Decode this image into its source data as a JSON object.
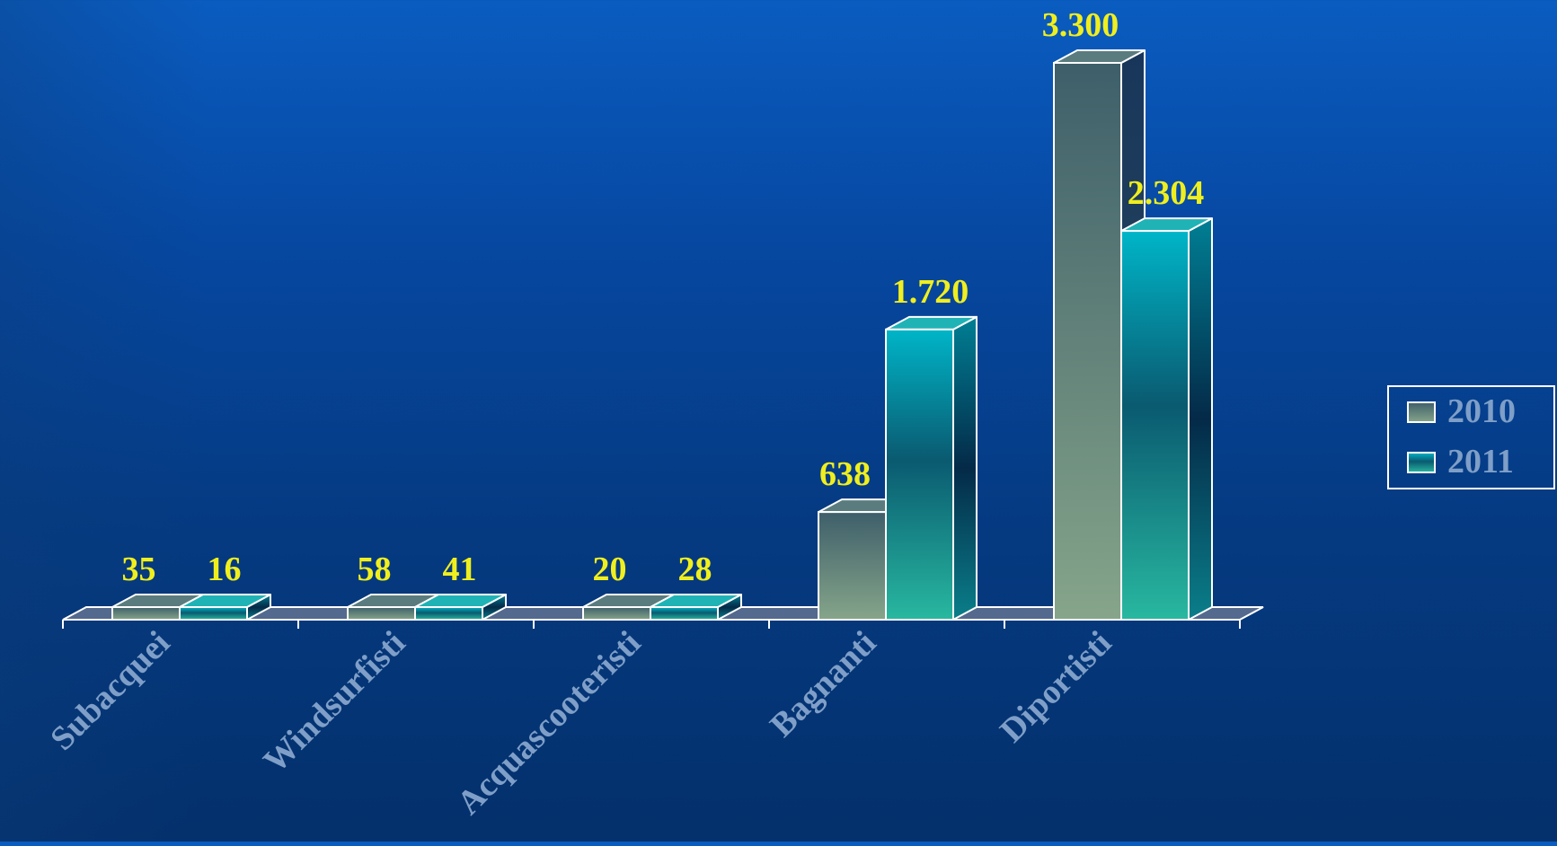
{
  "chart_data": {
    "type": "bar",
    "title": "",
    "xlabel": "",
    "ylabel": "",
    "categories": [
      "Subacquei",
      "Windsurfisti",
      "Acquascooteristi",
      "Bagnanti",
      "Diportisti"
    ],
    "series": [
      {
        "name": "2010",
        "values": [
          35,
          58,
          20,
          638,
          3300
        ],
        "labels": [
          "35",
          "58",
          "20",
          "638",
          "3.300"
        ]
      },
      {
        "name": "2011",
        "values": [
          16,
          41,
          28,
          1720,
          2304
        ],
        "labels": [
          "16",
          "41",
          "28",
          "1.720",
          "2.304"
        ]
      }
    ],
    "ylim": [
      0,
      3300
    ],
    "grid": false,
    "legend": "right",
    "style": "3d",
    "colors": {
      "series_2010_top": "#3e5f6a",
      "series_2010_bottom": "#86a58a",
      "series_2011_top": "#00b5c8",
      "series_2011_mid": "#0a5a70",
      "series_2011_bottom": "#28b8a0",
      "data_label": "#f0ef1e",
      "category_label": "#7f9fc8",
      "legend_text": "#7f9fc8",
      "outline": "#ffffff"
    }
  }
}
